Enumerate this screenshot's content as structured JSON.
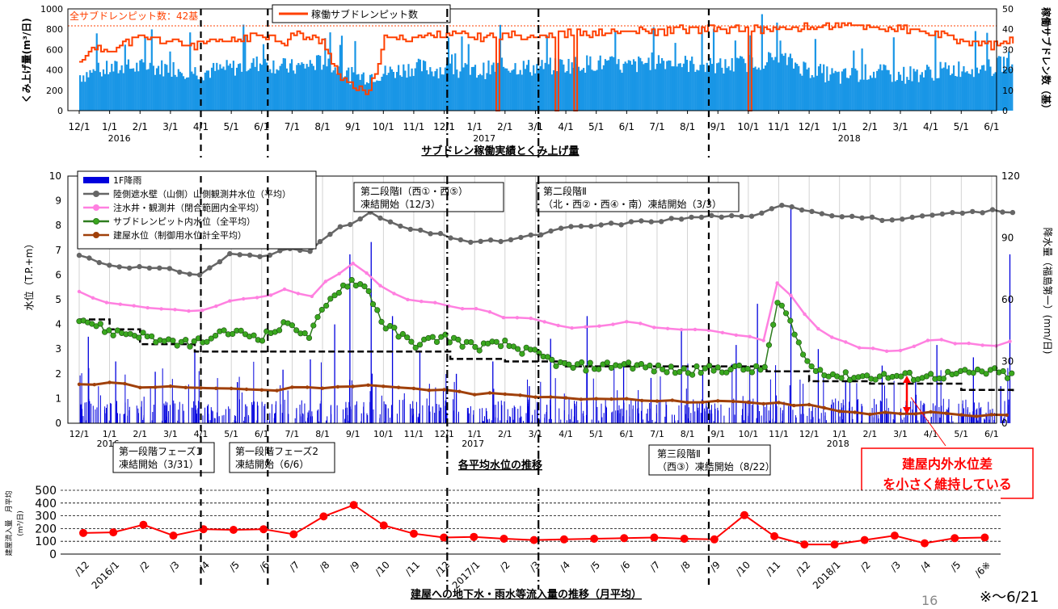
{
  "page_number": "16",
  "footnote": "※〜6/21",
  "colors": {
    "pumping": "#1996e6",
    "operating": "#ff4000",
    "mountain": "#666666",
    "injection": "#ff80e0",
    "subdrain": "#2e7d1e",
    "building": "#a0400a",
    "rain": "#0000dd",
    "inflow": "#ff0000",
    "callout": "#ff0000"
  },
  "callout": {
    "line1": "建屋内外水位差",
    "line2": "を小さく維持している"
  },
  "chart_data": [
    {
      "type": "area",
      "title": "サブドレン稼働実績とくみ上げ量",
      "ylabel": "くみ上げ量(m³/日)",
      "y2label": "稼働サブドレン数（基）",
      "ylim": [
        0,
        1000
      ],
      "y2lim": [
        0,
        50
      ],
      "yticks": [
        "0",
        "200",
        "400",
        "600",
        "800",
        "1000"
      ],
      "y2ticks": [
        "0",
        "10",
        "20",
        "30",
        "40",
        "50"
      ],
      "xticks": [
        "12/1",
        "1/1",
        "2/1",
        "3/1",
        "4/1",
        "5/1",
        "6/1",
        "7/1",
        "8/1",
        "9/1",
        "10/1",
        "11/1",
        "12/1",
        "1/1",
        "2/1",
        "3/1",
        "4/1",
        "5/1",
        "6/1",
        "7/1",
        "8/1",
        "9/1",
        "10/1",
        "11/1",
        "12/1",
        "1/1",
        "2/1",
        "3/1",
        "4/1",
        "5/1",
        "6/1"
      ],
      "year_labels": [
        "2016",
        "2017",
        "2018"
      ],
      "total_label": "全サブドレンピット数：42基",
      "legend": "稼働サブドレンピット数",
      "series": [
        {
          "name": "くみ上げ量",
          "months": [
            0,
            1,
            2,
            3,
            4,
            5,
            6,
            7,
            8,
            9,
            10,
            11,
            12,
            13,
            14,
            15,
            16,
            17,
            18,
            19,
            20,
            21,
            22,
            23,
            24,
            25,
            26,
            27,
            28,
            29,
            30,
            30.7
          ],
          "values": [
            350,
            410,
            430,
            420,
            380,
            420,
            470,
            420,
            480,
            330,
            370,
            430,
            400,
            380,
            440,
            420,
            450,
            470,
            430,
            500,
            460,
            430,
            470,
            520,
            400,
            330,
            380,
            350,
            380,
            420,
            420,
            520
          ]
        },
        {
          "name": "稼働サブドレンピット数",
          "months": [
            0,
            0.3,
            1,
            1.5,
            2,
            3,
            3.8,
            4,
            5,
            6,
            6.8,
            7,
            8,
            8.6,
            9,
            9.5,
            10,
            11,
            12,
            13,
            14,
            15,
            16,
            17,
            18,
            19,
            20,
            21,
            22,
            23,
            24,
            25,
            26,
            27,
            28,
            29,
            30,
            30.7
          ],
          "values": [
            23,
            30,
            30,
            33,
            36,
            34,
            32,
            33,
            34,
            38,
            33,
            38,
            34,
            15,
            12,
            7,
            35,
            36,
            38,
            36,
            37,
            37,
            38,
            38,
            39,
            39,
            40,
            40,
            40,
            40,
            41,
            42,
            41,
            40,
            38,
            34,
            32,
            34
          ]
        }
      ]
    },
    {
      "type": "line",
      "title": "各平均水位の推移",
      "ylabel": "水位（T.P.+m）",
      "y2label": "降水量（福島第一）(mm/日)",
      "ylim": [
        0,
        10
      ],
      "y2lim": [
        0,
        120
      ],
      "yticks": [
        "0",
        "1",
        "2",
        "3",
        "4",
        "5",
        "6",
        "7",
        "8",
        "9",
        "10"
      ],
      "y2ticks": [
        "0",
        "30",
        "60",
        "90",
        "120"
      ],
      "xticks": [
        "12/1",
        "1/1",
        "2/1",
        "3/1",
        "4/1",
        "5/1",
        "6/1",
        "7/1",
        "8/1",
        "9/1",
        "10/1",
        "11/1",
        "12/1",
        "1/1",
        "2/1",
        "3/1",
        "4/1",
        "5/1",
        "6/1",
        "7/1",
        "8/1",
        "9/1",
        "10/1",
        "11/1",
        "12/1",
        "1/1",
        "2/1",
        "3/1",
        "4/1",
        "5/1",
        "6/1"
      ],
      "year_labels": [
        "2016",
        "2017",
        "2018"
      ],
      "series": [
        {
          "name": "1F降雨",
          "months": [
            0.3,
            1.2,
            2.5,
            3.8,
            5.2,
            6.7,
            7.6,
            8.4,
            8.9,
            9.6,
            10.3,
            11.2,
            12.4,
            13.6,
            14.8,
            15.5,
            16.7,
            17.9,
            18.8,
            19.8,
            20.5,
            21.6,
            22.3,
            23.4,
            24.3,
            25.2,
            26.4,
            27.5,
            28.2,
            29.4,
            30.3,
            30.6
          ],
          "values": [
            42,
            30,
            25,
            35,
            20,
            26,
            31,
            48,
            82,
            88,
            52,
            35,
            24,
            30,
            18,
            41,
            52,
            30,
            22,
            45,
            26,
            38,
            58,
            105,
            36,
            20,
            28,
            22,
            38,
            32,
            18,
            82
          ]
        },
        {
          "name": "陸側遮水壁（山側）山側観測井水位（平均）",
          "months": [
            0,
            1,
            2,
            3,
            4,
            5,
            6,
            7,
            7.5,
            8,
            8.5,
            9,
            9.5,
            10,
            11,
            12,
            13,
            14,
            15,
            16,
            17,
            18,
            19,
            20,
            21,
            22,
            22.5,
            23,
            24,
            25,
            26,
            27,
            28,
            29,
            30,
            30.7
          ],
          "values": [
            6.8,
            6.4,
            6.3,
            6.2,
            6.0,
            6.9,
            6.7,
            7.1,
            6.9,
            7.5,
            7.9,
            8.0,
            8.6,
            8.2,
            7.8,
            7.6,
            7.3,
            7.4,
            7.6,
            7.9,
            8.0,
            8.1,
            8.2,
            8.3,
            8.4,
            8.3,
            8.5,
            8.9,
            8.6,
            8.4,
            8.3,
            8.2,
            8.4,
            8.5,
            8.6,
            8.5
          ]
        },
        {
          "name": "注水井・観測井（閉合範囲内全平均）",
          "months": [
            0,
            1,
            2,
            3,
            4,
            5,
            6,
            7,
            7.5,
            8,
            8.5,
            9,
            9.5,
            10,
            11,
            12,
            13,
            14,
            15,
            16,
            17,
            18,
            19,
            20,
            21,
            22,
            22.5,
            23,
            24,
            25,
            26,
            27,
            28,
            29,
            30,
            30.7
          ],
          "values": [
            5.3,
            4.8,
            4.7,
            4.6,
            4.5,
            5.0,
            5.1,
            5.5,
            4.9,
            5.6,
            6.0,
            6.5,
            6.0,
            5.5,
            4.9,
            4.8,
            4.6,
            4.3,
            4.2,
            3.9,
            3.9,
            4.1,
            3.9,
            3.8,
            3.7,
            3.5,
            3.3,
            5.9,
            4.1,
            3.3,
            3.0,
            2.9,
            3.4,
            3.2,
            3.1,
            3.4
          ]
        },
        {
          "name": "サブドレンピット内水位（全平均）",
          "months": [
            0,
            1,
            2,
            3,
            4,
            5,
            6,
            7,
            7.5,
            8,
            8.5,
            9,
            9.5,
            10,
            11,
            12,
            13,
            14,
            15,
            16,
            17,
            18,
            19,
            20,
            21,
            22,
            22.5,
            23,
            24,
            25,
            26,
            27,
            28,
            29,
            30,
            30.7
          ],
          "values": [
            4.3,
            3.7,
            3.6,
            3.2,
            3.3,
            3.7,
            3.5,
            4.1,
            3.4,
            4.5,
            5.4,
            5.8,
            5.4,
            4.0,
            3.2,
            3.5,
            3.1,
            3.2,
            2.8,
            2.3,
            2.3,
            2.4,
            2.2,
            2.1,
            2.2,
            2.2,
            2.1,
            5.0,
            2.3,
            1.9,
            1.9,
            1.9,
            1.9,
            2.0,
            2.1,
            1.9
          ]
        },
        {
          "name": "建屋水位（制御用水位計全平均）",
          "months": [
            0,
            1,
            2,
            3,
            4,
            5,
            6,
            7,
            8,
            9,
            10,
            11,
            12,
            13,
            14,
            15,
            16,
            17,
            18,
            19,
            20,
            21,
            22,
            23,
            24,
            25,
            26,
            27,
            28,
            29,
            30,
            30.5
          ],
          "values": [
            1.6,
            1.6,
            1.5,
            1.45,
            1.4,
            1.4,
            1.35,
            1.4,
            1.4,
            1.5,
            1.55,
            1.4,
            1.3,
            1.2,
            1.15,
            1.05,
            1.0,
            1.0,
            1.0,
            0.95,
            0.9,
            0.85,
            0.85,
            0.8,
            0.75,
            0.5,
            0.4,
            0.4,
            0.4,
            0.35,
            0.3,
            0.3
          ]
        }
      ],
      "annotations": [
        {
          "line1": "第二段階Ⅰ（西①・西⑤）",
          "line2": "凍結開始（12/3）"
        },
        {
          "line1": "第二段階Ⅱ",
          "line2": "（北・西②・西④・南）凍結開始（3/3）"
        },
        {
          "line1": "第一段階フェーズ1",
          "line2": "凍結開始（3/31）"
        },
        {
          "line1": "第一段階フェーズ2",
          "line2": "凍結開始（6/6）"
        },
        {
          "line1": "第三段階Ⅱ",
          "line2": "（西③）凍結開始（8/22）"
        }
      ]
    },
    {
      "type": "line",
      "title": "建屋への地下水・雨水等流入量の推移（月平均）",
      "ylabel": "建屋流入量　月平均",
      "yunit": "(m³/日)",
      "ylim": [
        0,
        500
      ],
      "yticks": [
        "0",
        "100",
        "200",
        "300",
        "400",
        "500"
      ],
      "categories": [
        "/12",
        "2016/1",
        "/2",
        "/3",
        "/4",
        "/5",
        "/6",
        "/7",
        "/8",
        "/9",
        "/10",
        "/11",
        "/12",
        "2017/1",
        "/2",
        "/3",
        "/4",
        "/5",
        "/6",
        "/7",
        "/8",
        "/9",
        "/10",
        "/11",
        "/12",
        "2018/1",
        "/2",
        "/3",
        "/4",
        "/5",
        "/6※"
      ],
      "values": [
        165,
        170,
        230,
        145,
        195,
        190,
        195,
        155,
        295,
        385,
        225,
        160,
        130,
        135,
        120,
        110,
        115,
        120,
        125,
        130,
        120,
        115,
        305,
        140,
        75,
        75,
        110,
        145,
        85,
        125,
        130
      ]
    }
  ]
}
